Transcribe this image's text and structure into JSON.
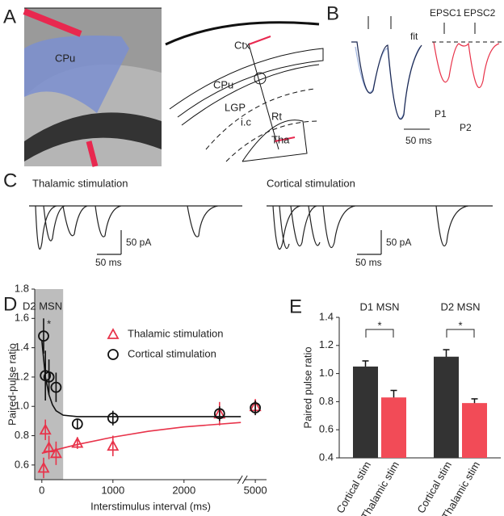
{
  "panel_labels": [
    "A",
    "B",
    "C",
    "D",
    "E"
  ],
  "panel_a": {
    "labels": [
      "CPu",
      "Ctx",
      "CPu",
      "LGP",
      "i.c",
      "Rt",
      "Tha"
    ]
  },
  "panel_b": {
    "labels": [
      "EPSC1",
      "EPSC2",
      "fit",
      "P1",
      "P2"
    ],
    "scale": "50 ms"
  },
  "panel_c": {
    "titles": [
      "Thalamic stimulation",
      "Cortical stimulation"
    ],
    "scales": [
      "50 pA",
      "50 ms",
      "50 pA",
      "50 ms"
    ]
  },
  "chart_data": [
    {
      "type": "scatter",
      "title": "D2 MSN",
      "x_label": "Interstimulus interval (ms)",
      "y_label": "Paired-pulse ratio",
      "xlim": [
        -100,
        5200
      ],
      "xbreak": [
        2800,
        4800
      ],
      "xticks": [
        0,
        1000,
        2000,
        5000
      ],
      "ylim": [
        0.5,
        1.8
      ],
      "yticks": [
        0.6,
        0.8,
        {
          "value": 1,
          "label": "1.0"
        },
        1.2,
        1.4,
        1.6,
        1.8
      ],
      "highlight_xrange": [
        -100,
        300
      ],
      "annotation": "*",
      "legend": "upper right",
      "series": [
        {
          "name": "Thalamic stimulation",
          "color": "#e8334a",
          "marker": "triangle",
          "x": [
            25,
            50,
            100,
            200,
            500,
            1000,
            2500,
            5000
          ],
          "values": [
            0.58,
            0.84,
            0.72,
            0.68,
            0.75,
            0.73,
            0.95,
            1.0
          ],
          "errors": [
            0.07,
            0.07,
            0.08,
            0.08,
            0.04,
            0.07,
            0.08,
            0.05
          ],
          "fit_x": [
            0,
            500,
            1000,
            1500,
            2000,
            2800
          ],
          "fit_y": [
            0.68,
            0.74,
            0.79,
            0.83,
            0.86,
            0.89
          ]
        },
        {
          "name": "Cortical stimulation",
          "color": "#111111",
          "marker": "circle",
          "x": [
            25,
            50,
            100,
            200,
            500,
            1000,
            2500,
            5000
          ],
          "values": [
            1.48,
            1.21,
            1.2,
            1.13,
            0.88,
            0.92,
            0.95,
            0.99
          ],
          "errors": [
            0.12,
            0.17,
            0.12,
            0.1,
            0.03,
            0.05,
            0.05,
            0.05
          ],
          "fit_x": [
            0,
            50,
            100,
            150,
            200,
            300,
            500,
            1000,
            2800
          ],
          "fit_y": [
            1.45,
            1.2,
            1.08,
            1.01,
            0.97,
            0.94,
            0.93,
            0.93,
            0.93
          ]
        }
      ]
    },
    {
      "type": "bar",
      "y_label": "Paired pulse ratio",
      "categories": [
        "D1 MSN",
        "D2 MSN"
      ],
      "ylim": [
        0.4,
        1.4
      ],
      "yticks": [
        0.4,
        0.6,
        0.8,
        {
          "value": 1,
          "label": "1.0"
        },
        1.2,
        1.4
      ],
      "annotations": [
        "*",
        "*"
      ],
      "series": [
        {
          "name": "Cortical stim",
          "color": "#333333",
          "values": [
            1.05,
            1.12
          ],
          "errors": [
            0.04,
            0.05
          ]
        },
        {
          "name": "Thalamic stim",
          "color": "#f24b57",
          "values": [
            0.83,
            0.79
          ],
          "errors": [
            0.05,
            0.03
          ]
        }
      ]
    }
  ]
}
